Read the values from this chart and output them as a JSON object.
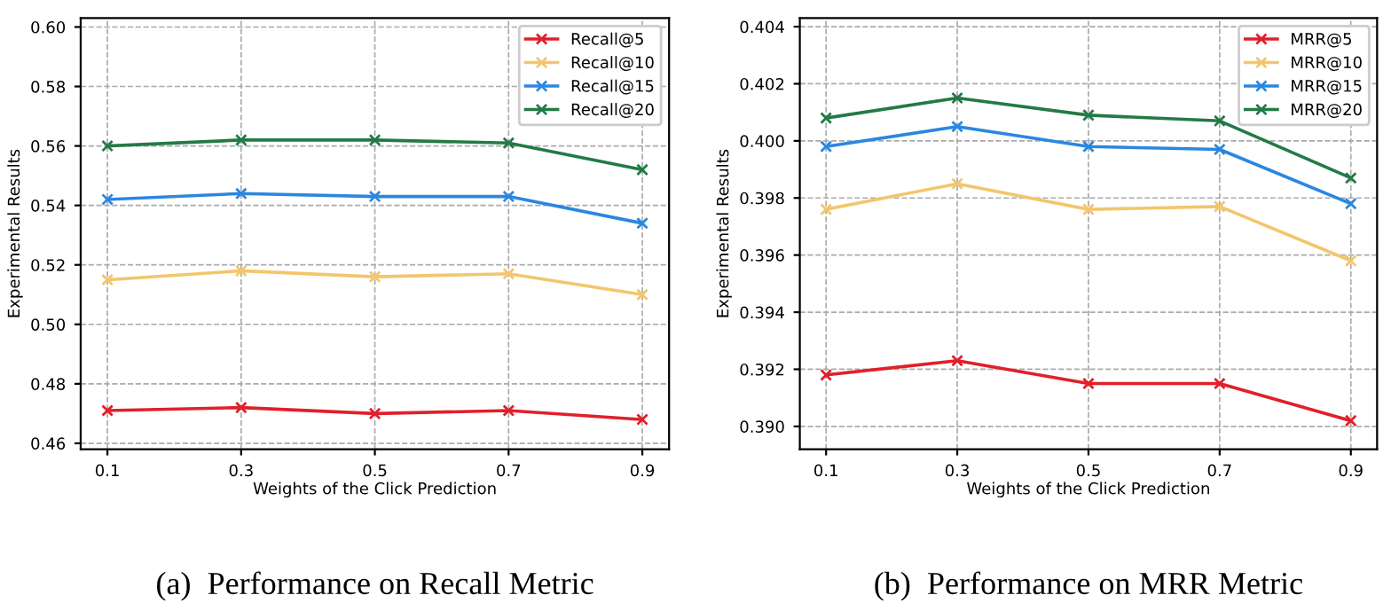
{
  "chart_data": [
    {
      "type": "line",
      "title": "(a)  Performance on Recall Metric",
      "xlabel": "Weights of the Click Prediction",
      "ylabel": "Experimental Results",
      "x": [
        0.1,
        0.3,
        0.5,
        0.7,
        0.9
      ],
      "xlim": [
        0.06,
        0.94
      ],
      "xticks": [
        0.1,
        0.3,
        0.5,
        0.7,
        0.9
      ],
      "ylim": [
        0.458,
        0.603
      ],
      "yticks": [
        {
          "value": 0.46,
          "label": "0.46"
        },
        {
          "value": 0.48,
          "label": "0.48"
        },
        {
          "value": 0.5,
          "label": "0.50"
        },
        {
          "value": 0.52,
          "label": "0.52"
        },
        {
          "value": 0.54,
          "label": "0.54"
        },
        {
          "value": 0.56,
          "label": "0.56"
        },
        {
          "value": 0.58,
          "label": "0.58"
        },
        {
          "value": 0.6,
          "label": "0.60"
        }
      ],
      "grid": true,
      "legend": "top right",
      "marker": "cross",
      "line_style": "solid",
      "series": [
        {
          "name": "Recall@5",
          "color": "#e0202a",
          "values": [
            0.471,
            0.472,
            0.47,
            0.471,
            0.468
          ]
        },
        {
          "name": "Recall@10",
          "color": "#f2c66d",
          "values": [
            0.515,
            0.518,
            0.516,
            0.517,
            0.51
          ]
        },
        {
          "name": "Recall@15",
          "color": "#2a87e0",
          "values": [
            0.542,
            0.544,
            0.543,
            0.543,
            0.534
          ]
        },
        {
          "name": "Recall@20",
          "color": "#237a45",
          "values": [
            0.56,
            0.562,
            0.562,
            0.561,
            0.552
          ]
        }
      ]
    },
    {
      "type": "line",
      "title": "(b)  Performance on MRR Metric",
      "xlabel": "Weights of the Click Prediction",
      "ylabel": "Experimental Results",
      "x": [
        0.1,
        0.3,
        0.5,
        0.7,
        0.9
      ],
      "xlim": [
        0.06,
        0.94
      ],
      "xticks": [
        0.1,
        0.3,
        0.5,
        0.7,
        0.9
      ],
      "ylim": [
        0.3892,
        0.4043
      ],
      "yticks": [
        {
          "value": 0.39,
          "label": "0.390"
        },
        {
          "value": 0.392,
          "label": "0.392"
        },
        {
          "value": 0.394,
          "label": "0.394"
        },
        {
          "value": 0.396,
          "label": "0.396"
        },
        {
          "value": 0.398,
          "label": "0.398"
        },
        {
          "value": 0.4,
          "label": "0.400"
        },
        {
          "value": 0.402,
          "label": "0.402"
        },
        {
          "value": 0.404,
          "label": "0.404"
        }
      ],
      "grid": true,
      "legend": "top right",
      "marker": "cross",
      "line_style": "solid",
      "series": [
        {
          "name": "MRR@5",
          "color": "#e0202a",
          "values": [
            0.3918,
            0.3923,
            0.3915,
            0.3915,
            0.3902
          ]
        },
        {
          "name": "MRR@10",
          "color": "#f2c66d",
          "values": [
            0.3976,
            0.3985,
            0.3976,
            0.3977,
            0.3958
          ]
        },
        {
          "name": "MRR@15",
          "color": "#2a87e0",
          "values": [
            0.3998,
            0.4005,
            0.3998,
            0.3997,
            0.3978
          ]
        },
        {
          "name": "MRR@20",
          "color": "#237a45",
          "values": [
            0.4008,
            0.4015,
            0.4009,
            0.4007,
            0.3987
          ]
        }
      ]
    }
  ]
}
